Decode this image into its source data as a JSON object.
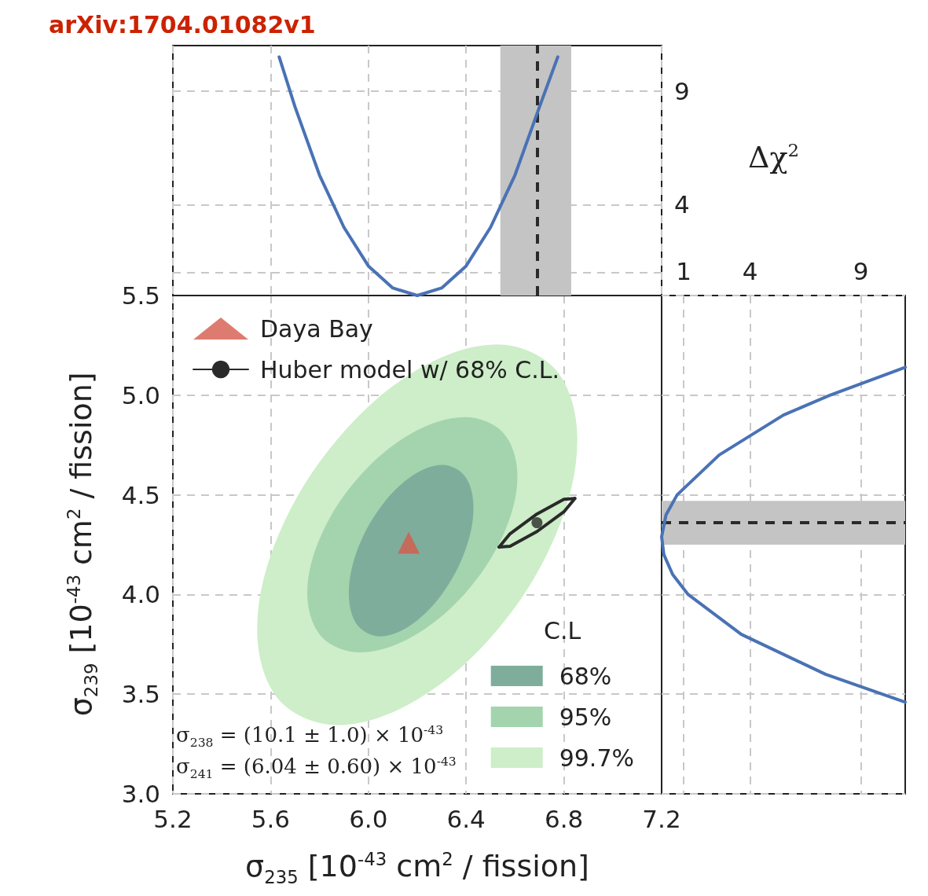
{
  "chart_data": [
    {
      "type": "scatter",
      "xlabel": "σ$_{235}$ [10$^{-43}$ cm$^{2}$ / fission]",
      "ylabel": "σ$_{239}$ [10$^{-43}$ cm$^{2}$ / fission]",
      "legend": "top left",
      "legend_title": "C.L",
      "grid": true,
      "xlim": [
        5.2,
        7.2
      ],
      "xticks": [
        5.2,
        5.6,
        {
          "value": 6,
          "label": "6.0"
        },
        6.4,
        6.8,
        7.2
      ],
      "ylim": [
        3,
        5.5
      ],
      "yticks": [
        {
          "value": 3,
          "label": "3.0"
        },
        3.5,
        {
          "value": 4,
          "label": "4.0"
        },
        4.5,
        {
          "value": 5,
          "label": "5.0"
        },
        5.5
      ],
      "annotations": [
        "arXiv:1704.01082v1",
        "σ$_{238}$ = (10.1 ± 1.0) × 10$^{-43}$",
        "σ$_{241}$ = (6.04 ± 0.60) × 10$^{-43}$"
      ],
      "series": [
        {
          "type": "area",
          "name": "99.7%",
          "color": "#cdeec8",
          "x": [
            6.855,
            6.767,
            6.528,
            6.2,
            5.873,
            5.633,
            5.545,
            5.633,
            5.873,
            6.2,
            6.528,
            6.767
          ],
          "values": [
            4.778,
            5.127,
            5.255,
            5.127,
            4.778,
            4.3,
            3.823,
            3.473,
            3.345,
            3.473,
            3.823,
            4.3
          ]
        },
        {
          "type": "area",
          "name": "95%",
          "color": "#a3d4ae",
          "x": [
            6.61,
            6.552,
            6.395,
            6.18,
            5.965,
            5.808,
            5.75,
            5.808,
            5.965,
            6.18,
            6.395,
            6.552
          ],
          "values": [
            4.595,
            4.811,
            4.89,
            4.811,
            4.595,
            4.3,
            4.005,
            3.789,
            3.71,
            3.789,
            4.005,
            4.3
          ]
        },
        {
          "type": "area",
          "name": "68%",
          "color": "#7eae9b",
          "x": [
            6.43,
            6.396,
            6.303,
            6.175,
            6.048,
            5.954,
            5.92,
            5.954,
            6.048,
            6.175,
            6.303,
            6.396
          ],
          "values": [
            4.435,
            4.592,
            4.65,
            4.592,
            4.435,
            4.22,
            4.005,
            3.848,
            3.79,
            3.848,
            4.005,
            4.22
          ]
        },
        {
          "type": "scatter",
          "name": "Daya Bay",
          "color": "#d65a4c",
          "marker": "triangle",
          "x": [
            6.165
          ],
          "values": [
            4.26
          ]
        },
        {
          "type": "line",
          "name": "Huber model w/ 68% C.L.",
          "color": "#2a2a2a",
          "marker": "none",
          "x": [
            6.535,
            6.58,
            6.69,
            6.8,
            6.845
          ],
          "values": [
            4.238,
            4.305,
            4.404,
            4.478,
            4.482
          ]
        },
        {
          "type": "line",
          "color": "#2a2a2a",
          "marker": "none",
          "x": [
            6.535,
            6.58,
            6.69,
            6.8,
            6.845
          ],
          "values": [
            4.238,
            4.242,
            4.316,
            4.415,
            4.482
          ]
        },
        {
          "type": "scatter",
          "color": "#2a2a2a",
          "marker": "circle",
          "x": [
            6.69
          ],
          "values": [
            4.36
          ]
        }
      ]
    },
    {
      "type": "line",
      "ylabel": "Δχ$^{2}$",
      "grid": true,
      "tick_labels": "y",
      "legend": false,
      "xlim": [
        5.2,
        7.2
      ],
      "xticks": [
        5.2,
        5.6,
        6,
        6.4,
        6.8,
        7.2
      ],
      "ylim": [
        0,
        11
      ],
      "yticks": [
        {
          "value": 1,
          "label": null
        },
        4,
        9
      ],
      "bands": [
        {
          "axis": "x",
          "from": 6.54,
          "to": 6.83,
          "color": "#c4c4c4"
        }
      ],
      "ref_lines": [
        {
          "axis": "x",
          "value": 6.69,
          "color": "#2a2a2a",
          "line_style": "dashed"
        }
      ],
      "series": [
        {
          "color": "#4a72b5",
          "marker": "none",
          "x": [
            5.635,
            5.7,
            5.8,
            5.9,
            6.0,
            6.1,
            6.2,
            6.3,
            6.4,
            6.5,
            6.6,
            6.7,
            6.775
          ],
          "values": [
            10.5,
            8.3,
            5.3,
            3.0,
            1.3,
            0.33,
            0,
            0.33,
            1.3,
            3.0,
            5.3,
            8.3,
            10.5
          ]
        }
      ]
    },
    {
      "type": "line",
      "grid": true,
      "tick_labels": "x",
      "legend": false,
      "xlim": [
        0,
        11
      ],
      "xticks": [
        1,
        4,
        9
      ],
      "ylim": [
        3,
        5.5
      ],
      "yticks": [
        3,
        3.5,
        4,
        4.5,
        5,
        5.5
      ],
      "bands": [
        {
          "axis": "y",
          "from": 4.25,
          "to": 4.47,
          "color": "#c4c4c4"
        }
      ],
      "ref_lines": [
        {
          "axis": "y",
          "value": 4.36,
          "color": "#2a2a2a",
          "line_style": "dashed"
        }
      ],
      "series": [
        {
          "color": "#4a72b5",
          "x": [
            11,
            7.4,
            3.6,
            1.2,
            0.5,
            0.1,
            0,
            0.2,
            0.7,
            2.6,
            5.5,
            7.6,
            11
          ],
          "values": [
            3.46,
            3.6,
            3.8,
            4.0,
            4.1,
            4.2,
            4.29,
            4.4,
            4.5,
            4.7,
            4.9,
            5.0,
            5.14
          ]
        }
      ]
    }
  ]
}
